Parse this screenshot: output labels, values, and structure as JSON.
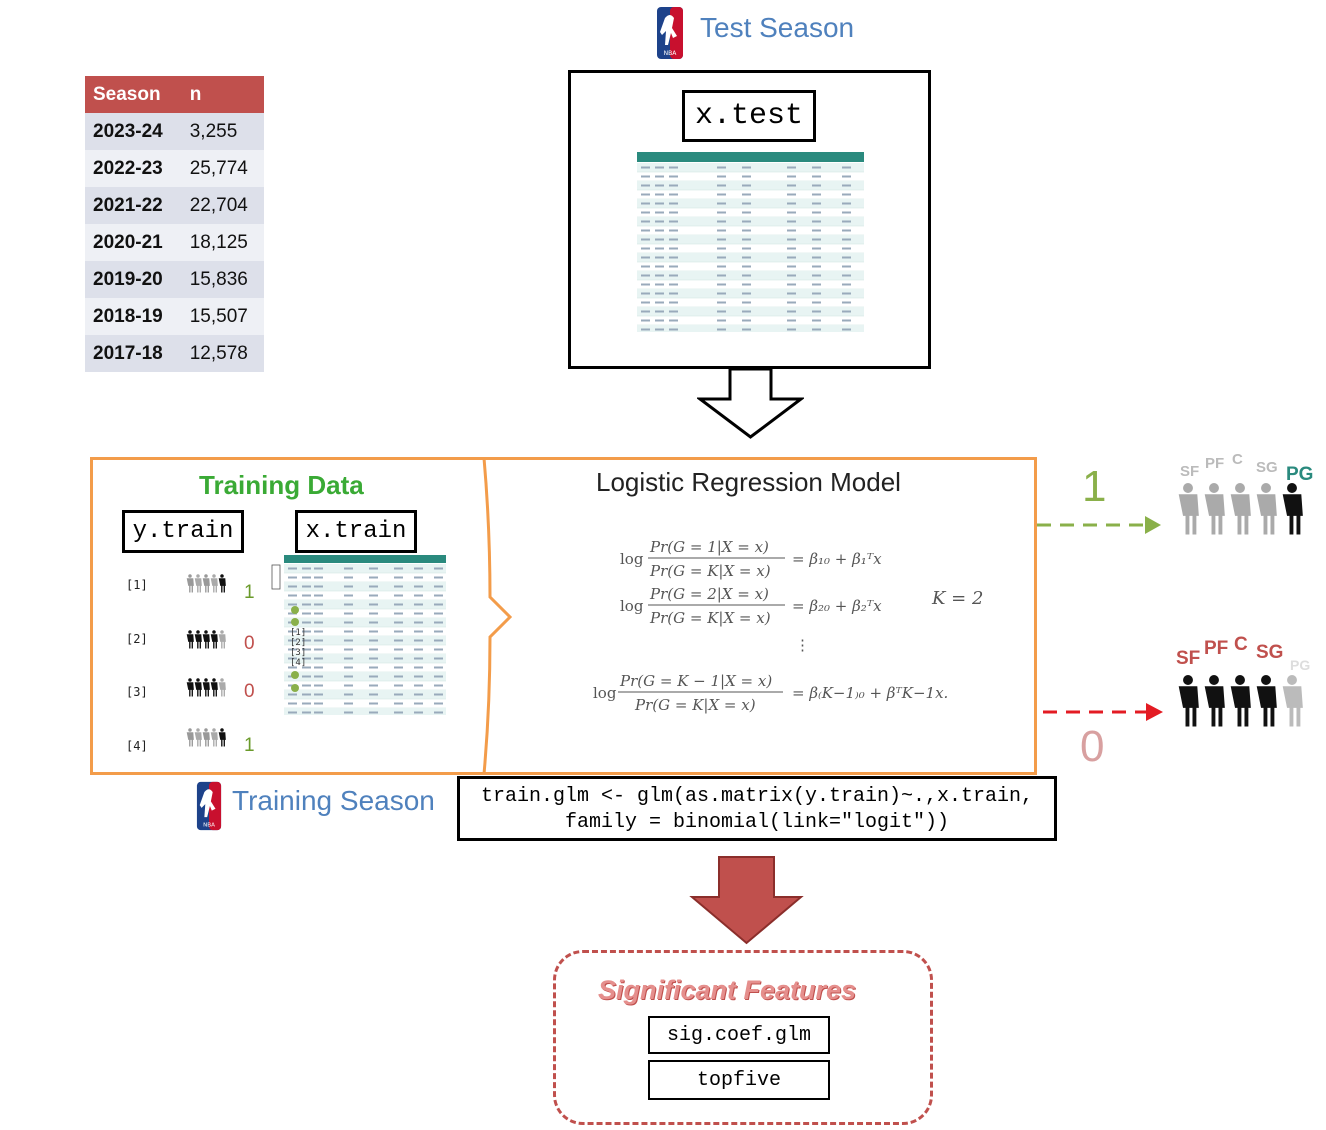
{
  "test_section": {
    "title": "Test Season",
    "x_test_label": "x.test"
  },
  "season_table": {
    "headers": [
      "Season",
      "n"
    ],
    "rows": [
      {
        "season": "2023-24",
        "n": "3,255"
      },
      {
        "season": "2022-23",
        "n": "25,774"
      },
      {
        "season": "2021-22",
        "n": "22,704"
      },
      {
        "season": "2020-21",
        "n": "18,125"
      },
      {
        "season": "2019-20",
        "n": "15,836"
      },
      {
        "season": "2018-19",
        "n": "15,507"
      },
      {
        "season": "2017-18",
        "n": "12,578"
      }
    ]
  },
  "training": {
    "title": "Training Data",
    "y_label": "y.train",
    "x_label": "x.train",
    "rows": [
      {
        "index": "[1]",
        "value": "1"
      },
      {
        "index": "[2]",
        "value": "0"
      },
      {
        "index": "[3]",
        "value": "0"
      },
      {
        "index": "[4]",
        "value": "1"
      }
    ],
    "season_label": "Training Season"
  },
  "model": {
    "title": "Logistic Regression Model",
    "k_label": "K = 2"
  },
  "code": {
    "line1": "train.glm <- glm(as.matrix(y.train)~.,x.train,",
    "line2": "family = binomial(link=\"logit\"))"
  },
  "outputs": {
    "positive": {
      "value": "1",
      "positions": [
        "SF",
        "PF",
        "C",
        "SG",
        "PG"
      ]
    },
    "negative": {
      "value": "0",
      "positions": [
        "SF",
        "PF",
        "C",
        "SG",
        "PG"
      ]
    }
  },
  "significant": {
    "title": "Significant Features",
    "items": [
      "sig.coef.glm",
      "topfive"
    ]
  },
  "colors": {
    "red": "#c0504d",
    "green": "#3aaa35",
    "blue": "#4f81bd",
    "orange": "#f39c4a",
    "teal": "#2a8a7e"
  }
}
